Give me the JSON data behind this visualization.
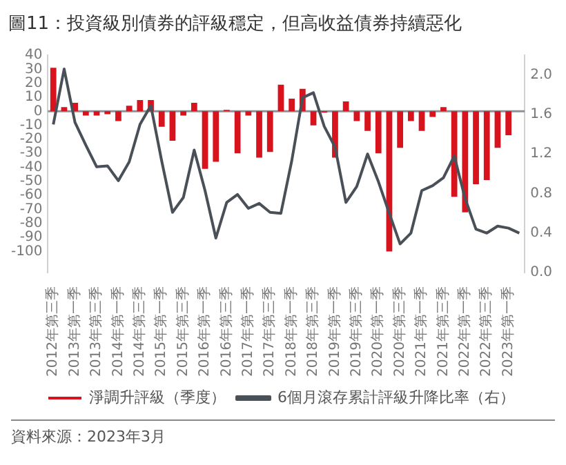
{
  "chart_data": {
    "type": "bar",
    "title": "圖11：投資級別債券的評級穩定，但高收益債券持續惡化",
    "categories": [
      "2012年第三季",
      null,
      "2013年第一季",
      null,
      "2013年第三季",
      null,
      "2014年第一季",
      null,
      "2014年第三季",
      null,
      "2015年第一季",
      null,
      "2015年第三季",
      null,
      "2016年第一季",
      null,
      "2016年第三季",
      null,
      "2017年第一季",
      null,
      "2017年第三季",
      null,
      "2018年第一季",
      null,
      "2018年第三季",
      null,
      "2019年第一季",
      null,
      "2019年第三季",
      null,
      "2020年第一季",
      null,
      "2020年第三季",
      null,
      "2021年第一季",
      null,
      "2021年第三季",
      null,
      "2022年第一季",
      null,
      "2022年第三季",
      null,
      "2023年第一季",
      null
    ],
    "series": [
      {
        "name": "淨調升評級（季度）",
        "color": "#d7141e",
        "values": [
          31,
          3,
          6,
          -3,
          -3,
          -2,
          -7,
          4,
          8,
          8,
          -11,
          -21,
          -3,
          6,
          -41,
          -36,
          1,
          -30,
          -3,
          -33,
          -29,
          19,
          9,
          16,
          -10,
          -1,
          -33,
          7,
          -7,
          -14,
          -30,
          -100,
          -26,
          -7,
          -14,
          -4,
          3,
          -61,
          -72,
          -52,
          -49,
          -26,
          -17,
          null
        ]
      },
      {
        "name": "6個月滾存累計評級升降比率（右）",
        "type": "line",
        "axis": "y2",
        "color": "#4a5058",
        "values": [
          1.5,
          2.06,
          1.52,
          1.29,
          1.07,
          1.08,
          0.93,
          1.12,
          1.5,
          1.69,
          1.13,
          0.61,
          0.76,
          1.24,
          0.83,
          0.35,
          0.71,
          0.79,
          0.65,
          0.7,
          0.61,
          0.6,
          1.13,
          1.77,
          1.82,
          1.48,
          1.27,
          0.71,
          0.87,
          1.2,
          0.92,
          0.6,
          0.29,
          0.4,
          0.83,
          0.88,
          0.96,
          1.18,
          0.75,
          0.44,
          0.4,
          0.47,
          0.45,
          0.4
        ]
      }
    ],
    "ylim": [
      -115,
      40
    ],
    "yticks": [
      -100,
      -90,
      -80,
      -70,
      -60,
      -50,
      -40,
      -30,
      -20,
      -10,
      0,
      10,
      20,
      30,
      40
    ],
    "y2lim": [
      0,
      2.2
    ],
    "y2ticks": [
      {
        "value": 0,
        "label": "0.0"
      },
      {
        "value": 0.4,
        "label": "0.4"
      },
      {
        "value": 0.8,
        "label": "0.8"
      },
      {
        "value": 1.2,
        "label": "1.2"
      },
      {
        "value": 1.6,
        "label": "1.6"
      },
      {
        "value": 2.0,
        "label": "2.0"
      }
    ],
    "ref_lines": [
      {
        "axis": "y",
        "value": 0,
        "color": "#8c9196"
      }
    ],
    "grid": false,
    "legend": "bottom",
    "marker": "none",
    "line_style": "solid",
    "annotations": [
      "資料來源：2023年3月"
    ]
  }
}
